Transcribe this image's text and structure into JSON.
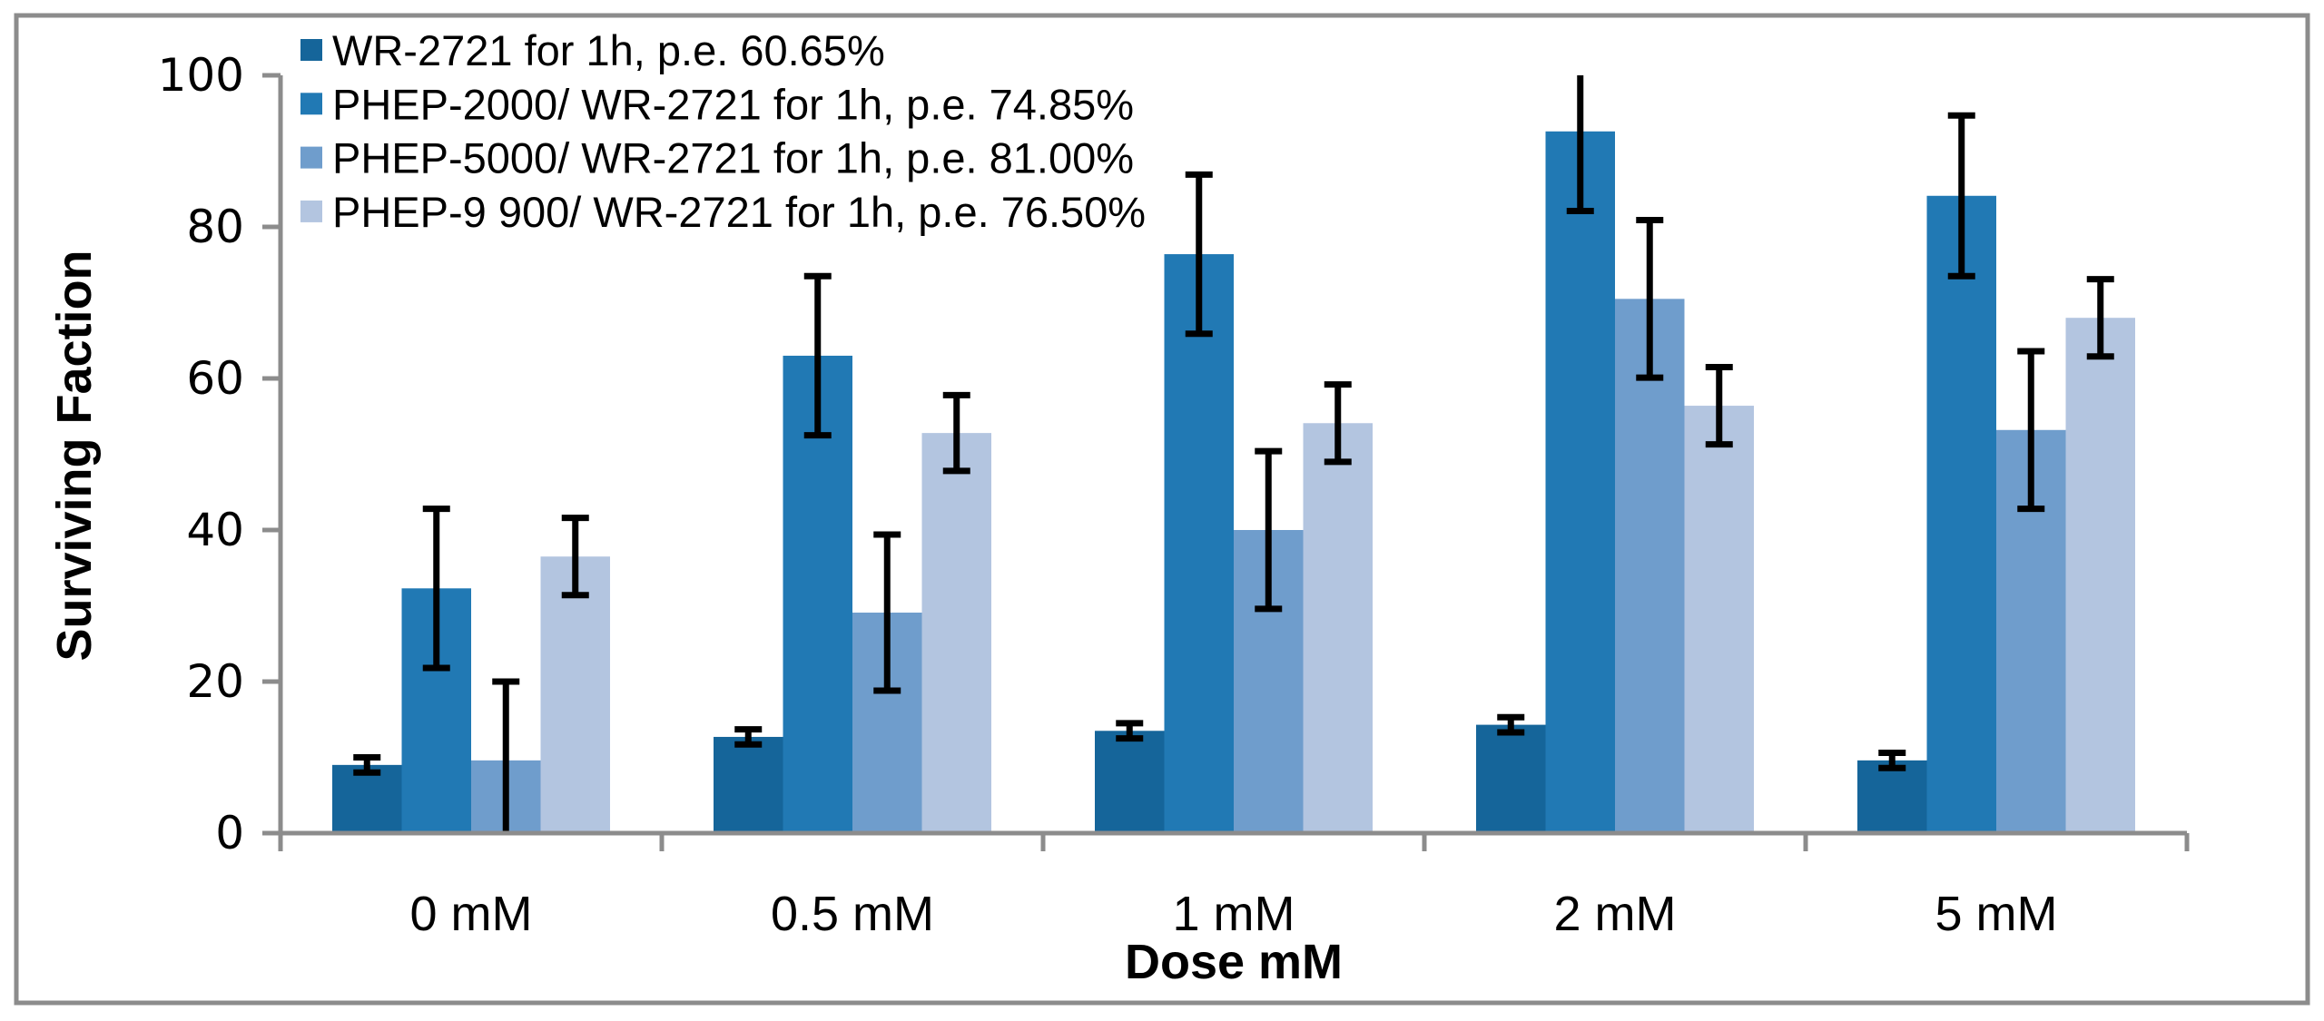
{
  "chart_data": {
    "type": "bar",
    "title": "",
    "xlabel": "Dose mM",
    "ylabel": "Surviving Faction",
    "ylim": [
      0,
      100
    ],
    "yticks": [
      0,
      20,
      40,
      60,
      80,
      100
    ],
    "grid": false,
    "legend_position": "top-left",
    "categories": [
      "0 mM",
      "0.5 mM",
      "1 mM",
      "2 mM",
      "5 mM"
    ],
    "series": [
      {
        "name": "WR-2721 for 1h, p.e. 60.65%",
        "color": "#15659A",
        "values": [
          9.0,
          12.7,
          13.5,
          14.3,
          9.6
        ],
        "errors": [
          1.0,
          1.0,
          1.0,
          1.0,
          1.0
        ]
      },
      {
        "name": "PHEP-2000/ WR-2721 for 1h, p.e. 74.85%",
        "color": "#2179B4",
        "values": [
          32.3,
          63.0,
          76.4,
          92.6,
          84.1
        ],
        "errors": [
          10.5,
          10.5,
          10.5,
          10.5,
          10.6
        ]
      },
      {
        "name": "PHEP-5000/ WR-2721 for 1h, p.e. 81.00%",
        "color": "#6F9DCC",
        "values": [
          9.6,
          29.1,
          40.0,
          70.5,
          53.2
        ],
        "errors": [
          10.4,
          10.3,
          10.4,
          10.4,
          10.4
        ]
      },
      {
        "name": "PHEP-9 900/ WR-2721 for 1h, p.e. 76.50%",
        "color": "#B3C5E0",
        "values": [
          36.5,
          52.8,
          54.1,
          56.4,
          68.0
        ],
        "errors": [
          5.1,
          5.0,
          5.1,
          5.1,
          5.1
        ]
      }
    ]
  }
}
